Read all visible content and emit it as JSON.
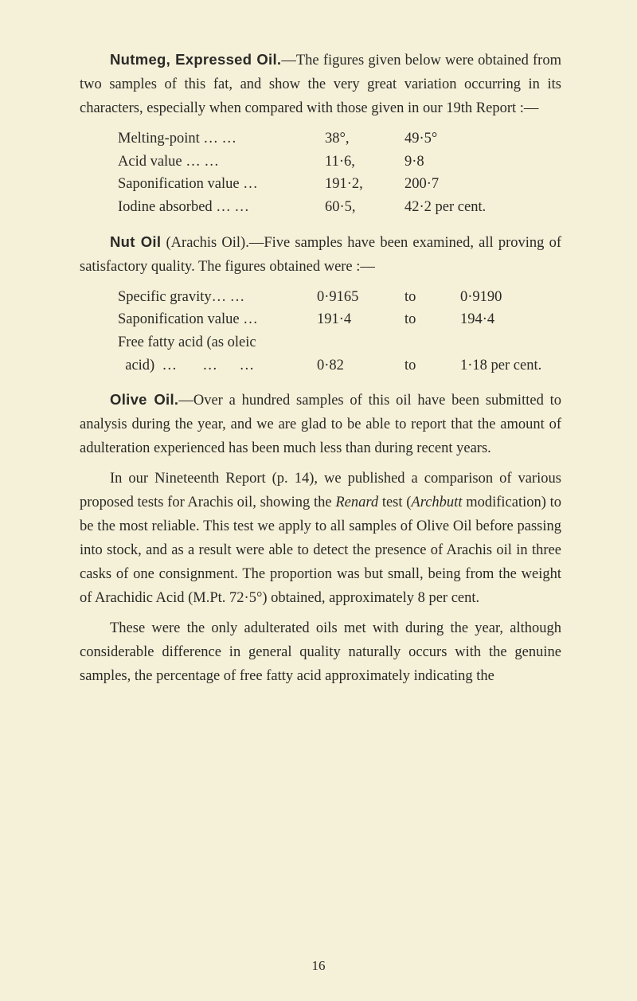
{
  "section1": {
    "heading": "Nutmeg, Expressed Oil.",
    "intro": "—The figures given below were obtained from two samples of this fat, and show the very great variation occurring in its characters, especially when compared with those given in our 19th Report :—",
    "rows": [
      {
        "label": "Melting-point     …     …",
        "col1": "38°,",
        "col2": "49·5°"
      },
      {
        "label": "Acid value            …     …",
        "col1": "11·6,",
        "col2": "9·8"
      },
      {
        "label": "Saponification value    …",
        "col1": "191·2,",
        "col2": "200·7"
      },
      {
        "label": "Iodine absorbed  …     …",
        "col1": "60·5,",
        "col2": "42·2 per cent."
      }
    ]
  },
  "section2": {
    "heading": "Nut Oil",
    "intro": " (Arachis Oil).—Five samples have been examined, all proving of satisfactory quality. The figures obtained were :—",
    "rows": [
      {
        "label": "Specific gravity…     …",
        "c1": "0·9165",
        "c2": "to",
        "c3": "0·9190"
      },
      {
        "label": "Saponification value   …",
        "c1": "191·4",
        "c2": "to",
        "c3": "194·4"
      },
      {
        "label": "Free fatty acid (as oleic",
        "c1": "",
        "c2": "",
        "c3": ""
      },
      {
        "label": "  acid)  …       …      …",
        "c1": "0·82",
        "c2": "to",
        "c3": "1·18 per cent."
      }
    ]
  },
  "section3": {
    "heading": "Olive Oil.",
    "p1": "—Over a hundred samples of this oil have been submitted to analysis during the year, and we are glad to be able to report that the amount of adultera­tion experienced has been much less than during recent years.",
    "p2a": "In our Nineteenth Report (p. 14), we published a comparison of various proposed tests for Arachis oil, showing the ",
    "p2_i1": "Renard",
    "p2b": " test (",
    "p2_i2": "Archbutt",
    "p2c": " modification) to be the most reliable. This test we apply to all samples of Olive Oil before passing into stock, and as a result were able to detect the presence of Arachis oil in three casks of one consignment. The proportion was but small, being from the weight of Arachidic Acid (M.Pt. 72·5°) obtained, approximately 8 per cent.",
    "p3": "These were the only adulterated oils met with during the year, although considerable difference in general quality naturally occurs with the genuine samples, the percentage of free fatty acid approximately indicating the"
  },
  "pagenum": "16"
}
